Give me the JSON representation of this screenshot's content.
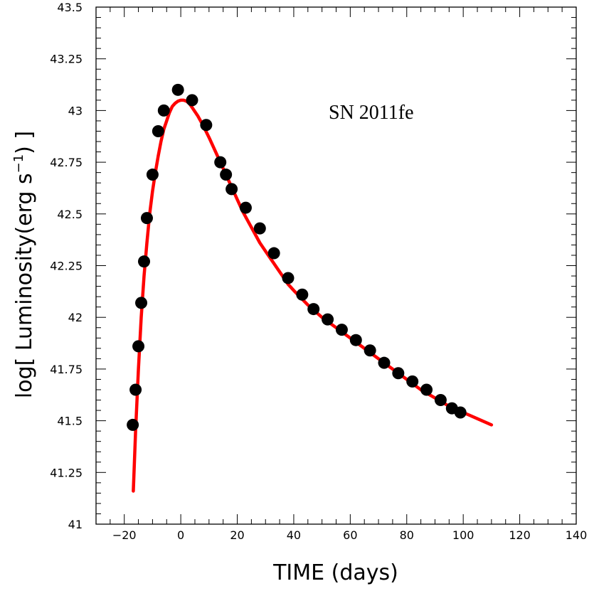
{
  "chart_data": {
    "type": "scatter",
    "title": "",
    "annotation": "SN 2011fe",
    "xlabel": "TIME (days)",
    "ylabel": {
      "prefix": "log[ Luminosity(erg s",
      "superscript": "−1",
      "suffix": ") ]"
    },
    "xlim": [
      -30,
      140
    ],
    "ylim": [
      41,
      43.5
    ],
    "x_ticks": [
      -20,
      0,
      20,
      40,
      60,
      80,
      100,
      120,
      140
    ],
    "x_tick_labels": [
      "−20",
      "0",
      "20",
      "40",
      "60",
      "80",
      "100",
      "120",
      "140"
    ],
    "y_ticks": [
      41,
      41.25,
      41.5,
      41.75,
      42,
      42.25,
      42.5,
      42.75,
      43,
      43.25,
      43.5
    ],
    "y_tick_labels": [
      "41",
      "41.25",
      "41.5",
      "41.75",
      "42",
      "42.25",
      "42.5",
      "42.75",
      "43",
      "43.25",
      "43.5"
    ],
    "grid": false,
    "series": [
      {
        "kind": "points",
        "color": "#000000",
        "x": [
          -17,
          -16,
          -15,
          -14,
          -13,
          -12,
          -10,
          -8,
          -6,
          -1,
          4,
          9,
          14,
          16,
          18,
          23,
          28,
          33,
          38,
          43,
          47,
          52,
          57,
          62,
          67,
          72,
          77,
          82,
          87,
          92,
          96,
          99
        ],
        "y": [
          41.48,
          41.65,
          41.86,
          42.07,
          42.27,
          42.48,
          42.69,
          42.9,
          43.0,
          43.1,
          43.05,
          42.93,
          42.75,
          42.69,
          42.62,
          42.53,
          42.43,
          42.31,
          42.19,
          42.11,
          42.04,
          41.99,
          41.94,
          41.89,
          41.84,
          41.78,
          41.73,
          41.69,
          41.65,
          41.6,
          41.56,
          41.54
        ]
      },
      {
        "kind": "line",
        "color": "#ff0000",
        "x": [
          -16.8,
          -16,
          -15,
          -14,
          -13,
          -12,
          -11,
          -10,
          -9,
          -8,
          -7,
          -6,
          -5,
          -4,
          -3,
          -2,
          -1,
          0,
          1,
          2,
          3,
          4,
          6,
          8,
          10,
          12,
          14,
          16,
          18,
          20,
          22,
          24,
          26,
          28,
          30,
          32,
          34,
          36,
          38,
          40,
          45,
          50,
          55,
          60,
          65,
          70,
          75,
          80,
          85,
          90,
          95,
          100,
          105,
          110
        ],
        "y": [
          41.16,
          41.45,
          41.75,
          42.0,
          42.2,
          42.36,
          42.5,
          42.61,
          42.7,
          42.78,
          42.85,
          42.91,
          42.95,
          42.99,
          43.02,
          43.035,
          43.045,
          43.05,
          43.05,
          43.045,
          43.035,
          43.015,
          42.975,
          42.925,
          42.87,
          42.81,
          42.75,
          42.69,
          42.63,
          42.57,
          42.51,
          42.46,
          42.41,
          42.36,
          42.32,
          42.28,
          42.24,
          42.2,
          42.16,
          42.13,
          42.06,
          42.0,
          41.95,
          41.9,
          41.85,
          41.8,
          41.75,
          41.7,
          41.65,
          41.61,
          41.57,
          41.54,
          41.51,
          41.48
        ]
      }
    ]
  }
}
